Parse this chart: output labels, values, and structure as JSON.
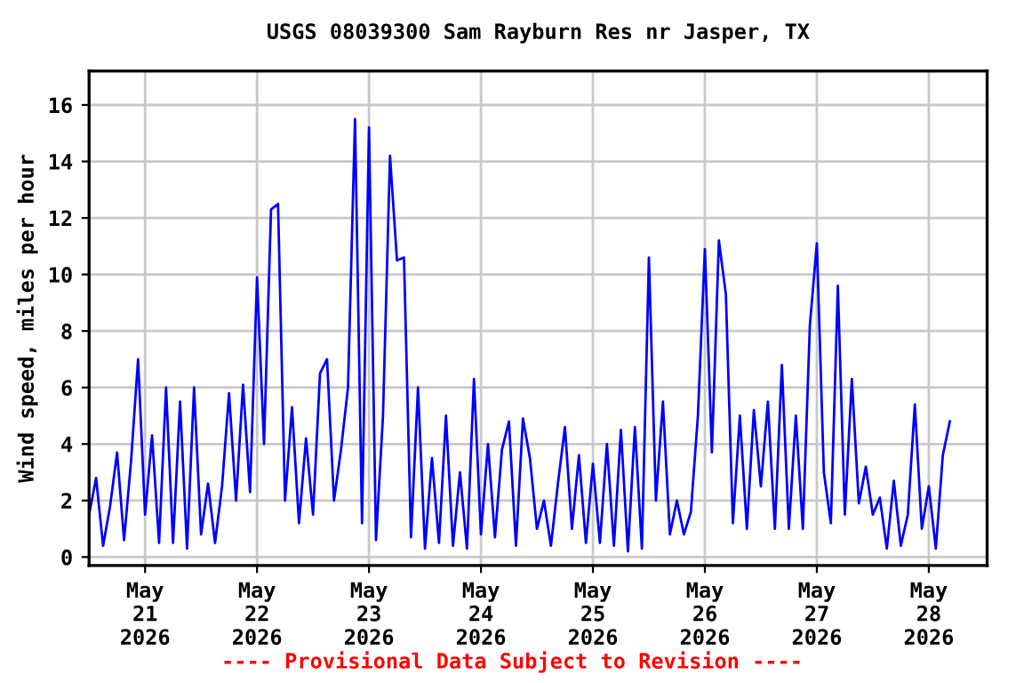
{
  "chart_data": {
    "type": "line",
    "title": "USGS 08039300 Sam Rayburn Res nr Jasper, TX",
    "ylabel": "Wind speed, miles per hour",
    "annotations": [
      "---- Provisional Data Subject to Revision ----"
    ],
    "x": [
      "2026-05-20T12:00",
      "2026-05-20T13:30",
      "2026-05-20T15:00",
      "2026-05-20T16:30",
      "2026-05-20T18:00",
      "2026-05-20T19:30",
      "2026-05-20T21:00",
      "2026-05-20T22:30",
      "2026-05-21T00:00",
      "2026-05-21T01:30",
      "2026-05-21T03:00",
      "2026-05-21T04:30",
      "2026-05-21T06:00",
      "2026-05-21T07:30",
      "2026-05-21T09:00",
      "2026-05-21T10:30",
      "2026-05-21T12:00",
      "2026-05-21T13:30",
      "2026-05-21T15:00",
      "2026-05-21T16:30",
      "2026-05-21T18:00",
      "2026-05-21T19:30",
      "2026-05-21T21:00",
      "2026-05-21T22:30",
      "2026-05-22T00:00",
      "2026-05-22T01:30",
      "2026-05-22T03:00",
      "2026-05-22T04:30",
      "2026-05-22T06:00",
      "2026-05-22T07:30",
      "2026-05-22T09:00",
      "2026-05-22T10:30",
      "2026-05-22T12:00",
      "2026-05-22T13:30",
      "2026-05-22T15:00",
      "2026-05-22T16:30",
      "2026-05-22T18:00",
      "2026-05-22T19:30",
      "2026-05-22T21:00",
      "2026-05-22T22:30",
      "2026-05-23T00:00",
      "2026-05-23T01:30",
      "2026-05-23T03:00",
      "2026-05-23T04:30",
      "2026-05-23T06:00",
      "2026-05-23T07:30",
      "2026-05-23T09:00",
      "2026-05-23T10:30",
      "2026-05-23T12:00",
      "2026-05-23T13:30",
      "2026-05-23T15:00",
      "2026-05-23T16:30",
      "2026-05-23T18:00",
      "2026-05-23T19:30",
      "2026-05-23T21:00",
      "2026-05-23T22:30",
      "2026-05-24T00:00",
      "2026-05-24T01:30",
      "2026-05-24T03:00",
      "2026-05-24T04:30",
      "2026-05-24T06:00",
      "2026-05-24T07:30",
      "2026-05-24T09:00",
      "2026-05-24T10:30",
      "2026-05-24T12:00",
      "2026-05-24T13:30",
      "2026-05-24T15:00",
      "2026-05-24T16:30",
      "2026-05-24T18:00",
      "2026-05-24T19:30",
      "2026-05-24T21:00",
      "2026-05-24T22:30",
      "2026-05-25T00:00",
      "2026-05-25T01:30",
      "2026-05-25T03:00",
      "2026-05-25T04:30",
      "2026-05-25T06:00",
      "2026-05-25T07:30",
      "2026-05-25T09:00",
      "2026-05-25T10:30",
      "2026-05-25T12:00",
      "2026-05-25T13:30",
      "2026-05-25T15:00",
      "2026-05-25T16:30",
      "2026-05-25T18:00",
      "2026-05-25T19:30",
      "2026-05-25T21:00",
      "2026-05-25T22:30",
      "2026-05-26T00:00",
      "2026-05-26T01:30",
      "2026-05-26T03:00",
      "2026-05-26T04:30",
      "2026-05-26T06:00",
      "2026-05-26T07:30",
      "2026-05-26T09:00",
      "2026-05-26T10:30",
      "2026-05-26T12:00",
      "2026-05-26T13:30",
      "2026-05-26T15:00",
      "2026-05-26T16:30",
      "2026-05-26T18:00",
      "2026-05-26T19:30",
      "2026-05-26T21:00",
      "2026-05-26T22:30",
      "2026-05-27T00:00",
      "2026-05-27T01:30",
      "2026-05-27T03:00",
      "2026-05-27T04:30",
      "2026-05-27T06:00",
      "2026-05-27T07:30",
      "2026-05-27T09:00",
      "2026-05-27T10:30",
      "2026-05-27T12:00",
      "2026-05-27T13:30",
      "2026-05-27T15:00",
      "2026-05-27T16:30",
      "2026-05-27T18:00",
      "2026-05-27T19:30",
      "2026-05-27T21:00",
      "2026-05-27T22:30",
      "2026-05-28T00:00",
      "2026-05-28T01:30",
      "2026-05-28T03:00",
      "2026-05-28T04:30"
    ],
    "series": [
      {
        "color": "#0000ff",
        "values": [
          1.5,
          2.8,
          0.4,
          1.8,
          3.7,
          0.6,
          3.4,
          7.0,
          1.5,
          4.3,
          0.5,
          6.0,
          0.5,
          5.5,
          0.3,
          6.0,
          0.8,
          2.6,
          0.5,
          2.5,
          5.8,
          2.0,
          6.1,
          2.3,
          9.9,
          4.0,
          12.3,
          12.5,
          2.0,
          5.3,
          1.2,
          4.2,
          1.5,
          6.5,
          7.0,
          2.0,
          3.8,
          6.0,
          15.5,
          1.2,
          15.2,
          0.6,
          5.0,
          14.2,
          10.5,
          10.6,
          0.7,
          6.0,
          0.3,
          3.5,
          0.5,
          5.0,
          0.4,
          3.0,
          0.3,
          6.3,
          0.8,
          4.0,
          0.7,
          3.8,
          4.8,
          0.4,
          4.9,
          3.5,
          1.0,
          2.0,
          0.4,
          2.6,
          4.6,
          1.0,
          3.6,
          0.5,
          3.3,
          0.5,
          4.0,
          0.4,
          4.5,
          0.2,
          4.6,
          0.3,
          10.6,
          2.0,
          5.5,
          0.8,
          2.0,
          0.8,
          1.6,
          5.0,
          10.9,
          3.7,
          11.2,
          9.3,
          1.2,
          5.0,
          1.0,
          5.2,
          2.5,
          5.5,
          1.0,
          6.8,
          1.0,
          5.0,
          1.0,
          8.2,
          11.1,
          3.0,
          1.2,
          9.6,
          1.5,
          6.3,
          1.9,
          3.2,
          1.5,
          2.1,
          0.3,
          2.7,
          0.4,
          1.5,
          5.4,
          1.0,
          2.5,
          0.3,
          3.6,
          4.8
        ]
      }
    ],
    "xlim": [
      "2026-05-20T12:00",
      "2026-05-28T12:30"
    ],
    "xticks": [
      {
        "value": "2026-05-21",
        "label": "May\n21\n2026"
      },
      {
        "value": "2026-05-22",
        "label": "May\n22\n2026"
      },
      {
        "value": "2026-05-23",
        "label": "May\n23\n2026"
      },
      {
        "value": "2026-05-24",
        "label": "May\n24\n2026"
      },
      {
        "value": "2026-05-25",
        "label": "May\n25\n2026"
      },
      {
        "value": "2026-05-26",
        "label": "May\n26\n2026"
      },
      {
        "value": "2026-05-27",
        "label": "May\n27\n2026"
      },
      {
        "value": "2026-05-28",
        "label": "May\n28\n2026"
      }
    ],
    "ylim": [
      -0.3,
      17.2
    ],
    "yticks": [
      0,
      2,
      4,
      6,
      8,
      10,
      12,
      14,
      16
    ],
    "grid": true,
    "line_style": "solid"
  }
}
